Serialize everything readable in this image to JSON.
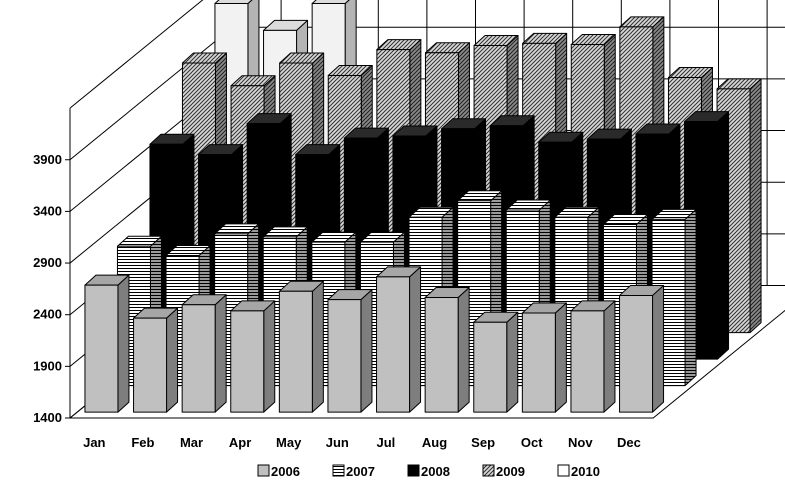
{
  "chart_data": {
    "type": "bar",
    "style": "3d-clustered-depth",
    "title": "",
    "xlabel": "",
    "ylabel": "",
    "ylim": [
      1400,
      4400
    ],
    "yticks": [
      1400,
      1900,
      2400,
      2900,
      3400,
      3900
    ],
    "grid": true,
    "legend_position": "bottom",
    "categories": [
      "Jan",
      "Feb",
      "Mar",
      "Apr",
      "May",
      "Jun",
      "Jul",
      "Aug",
      "Sep",
      "Oct",
      "Nov",
      "Dec"
    ],
    "series": [
      {
        "name": "2006",
        "pattern": "solid-gray",
        "color": "#c0c0c0",
        "values": [
          2630,
          2310,
          2440,
          2380,
          2570,
          2490,
          2710,
          2510,
          2270,
          2360,
          2380,
          2530
        ]
      },
      {
        "name": "2007",
        "pattern": "horizontal-lines",
        "color": "#ffffff",
        "values": [
          2750,
          2660,
          2870,
          2840,
          2790,
          2790,
          3030,
          3190,
          3100,
          3030,
          2960,
          3010
        ]
      },
      {
        "name": "2008",
        "pattern": "solid-black",
        "color": "#000000",
        "values": [
          3480,
          3380,
          3680,
          3380,
          3540,
          3560,
          3630,
          3660,
          3500,
          3530,
          3580,
          3700
        ]
      },
      {
        "name": "2009",
        "pattern": "diagonal-lines",
        "color": "#d0d0d0",
        "values": [
          4010,
          3790,
          4010,
          3890,
          4140,
          4110,
          4180,
          4200,
          4190,
          4360,
          3870,
          3760
        ]
      },
      {
        "name": "2010",
        "pattern": "solid-white",
        "color": "#f0f0f0",
        "values": [
          4330,
          4070,
          4330,
          null,
          null,
          null,
          null,
          null,
          null,
          null,
          null,
          null
        ]
      }
    ]
  }
}
